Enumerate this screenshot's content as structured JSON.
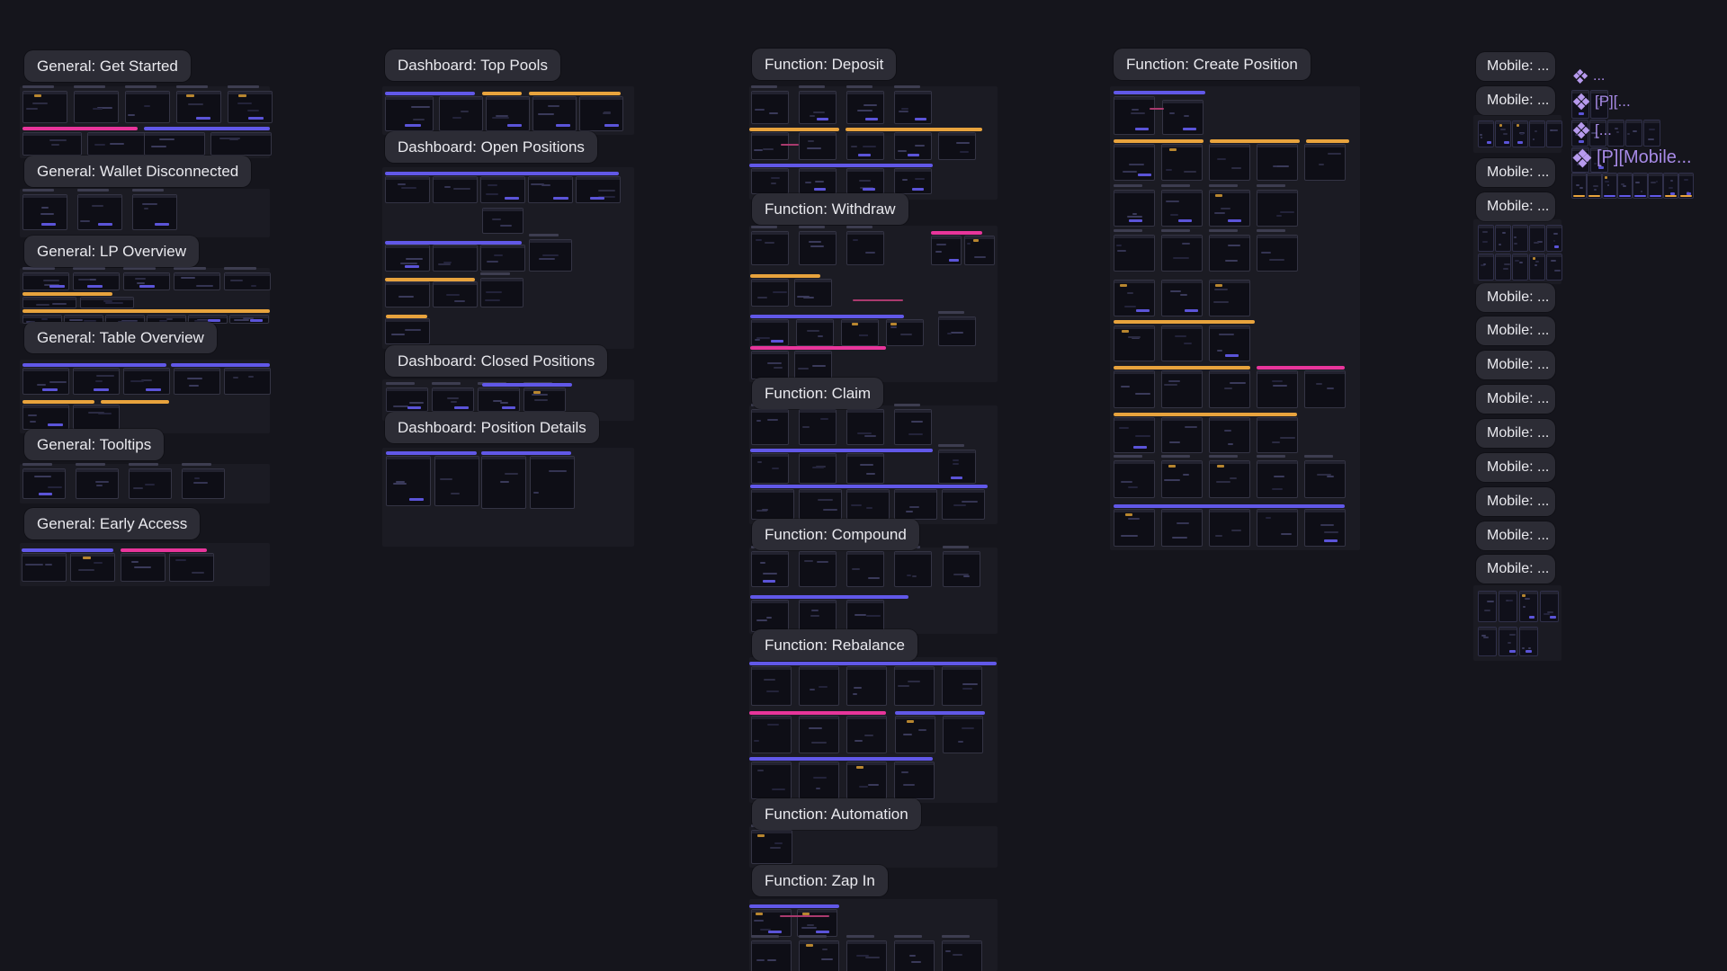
{
  "app": {
    "colors": {
      "canvas_bg": "#15151c",
      "group_bg": "#1b1b23",
      "pill_bg": "#2c2c35",
      "pill_text": "#e9e9ee",
      "accent_purple": "#6158e8",
      "accent_yellow": "#e8a33d",
      "accent_pink": "#e8359b",
      "component_purple": "#a78ae6"
    }
  },
  "sections": {
    "get_started": "General: Get Started",
    "wallet_disconnected": "General: Wallet Disconnected",
    "lp_overview": "General: LP Overview",
    "table_overview": "General: Table Overview",
    "tooltips": "General: Tooltips",
    "early_access": "General: Early Access",
    "top_pools": "Dashboard: Top Pools",
    "open_positions": "Dashboard: Open Positions",
    "closed_positions": "Dashboard: Closed Positions",
    "position_details": "Dashboard: Position Details",
    "deposit": "Function: Deposit",
    "withdraw": "Function: Withdraw",
    "claim": "Function: Claim",
    "compound": "Function: Compound",
    "rebalance": "Function: Rebalance",
    "automation": "Function: Automation",
    "zap_in": "Function: Zap In",
    "create_position": "Function: Create Position"
  },
  "mobile": {
    "label": "Mobile: ...",
    "count": 13
  },
  "components": {
    "item1": "...",
    "item2": "[P][...",
    "item3": "[...",
    "item4": "[P][Mobile..."
  }
}
